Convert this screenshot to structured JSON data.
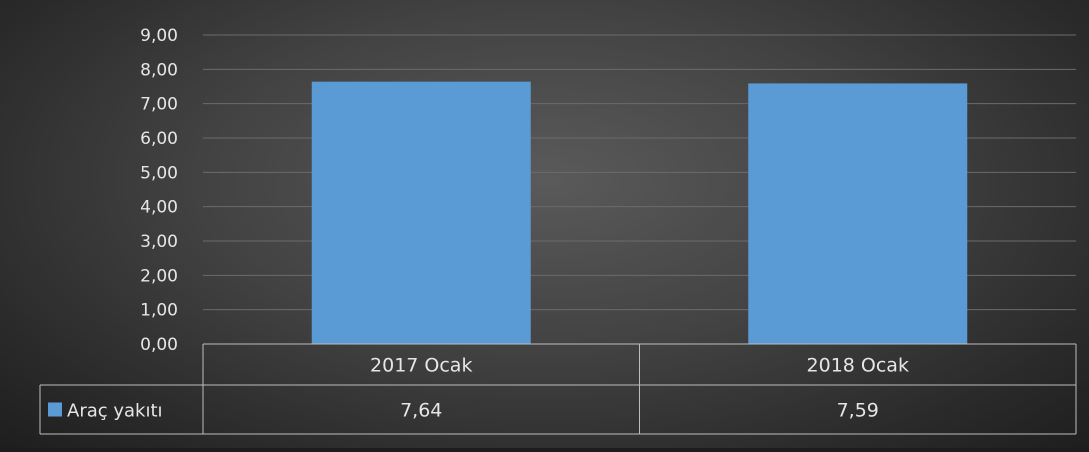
{
  "chart_data": {
    "type": "bar",
    "categories": [
      "2017 Ocak",
      "2018 Ocak"
    ],
    "series": [
      {
        "name": "Araç yakıtı",
        "values": [
          7.64,
          7.59
        ],
        "value_labels": [
          "7,64",
          "7,59"
        ],
        "color": "#5b9bd5"
      }
    ],
    "ylim": [
      0,
      9
    ],
    "y_ticks": [
      "0,00",
      "1,00",
      "2,00",
      "3,00",
      "4,00",
      "5,00",
      "6,00",
      "7,00",
      "8,00",
      "9,00"
    ],
    "grid": true,
    "data_table": true,
    "colors": {
      "text": "#e6e6e6",
      "grid": "#6b6b6b",
      "table_border": "#bdbdbd"
    }
  }
}
